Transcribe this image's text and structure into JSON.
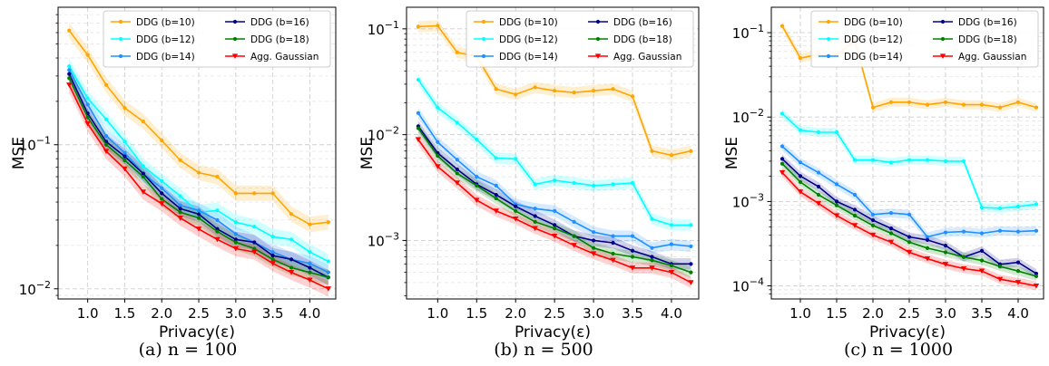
{
  "chart_data": [
    {
      "type": "line",
      "caption": "(a) n = 100",
      "xlabel": "Privacy(ε)",
      "ylabel": "MSE",
      "yscale": "log",
      "xlim": [
        0.6,
        4.35
      ],
      "ylim": [
        0.0085,
        0.9
      ],
      "xticks": [
        "1.0",
        "1.5",
        "2.0",
        "2.5",
        "3.0",
        "3.5",
        "4.0"
      ],
      "yticks": [
        {
          "value": 0.01,
          "label": "10^-2"
        },
        {
          "value": 0.1,
          "label": "10^-1"
        }
      ],
      "grid": true,
      "legend_position": "top-right",
      "x": [
        0.75,
        1.0,
        1.25,
        1.5,
        1.75,
        2.0,
        2.25,
        2.5,
        2.75,
        3.0,
        3.25,
        3.5,
        3.75,
        4.0,
        4.25
      ],
      "series": [
        {
          "name": "DDG (b=10)",
          "color": "#FFA500",
          "marker": "circle",
          "values": [
            0.62,
            0.42,
            0.26,
            0.18,
            0.145,
            0.107,
            0.078,
            0.064,
            0.06,
            0.046,
            0.046,
            0.046,
            0.033,
            0.028,
            0.029
          ]
        },
        {
          "name": "DDG (b=12)",
          "color": "#00FFFF",
          "marker": "circle",
          "values": [
            0.35,
            0.21,
            0.15,
            0.105,
            0.071,
            0.056,
            0.044,
            0.034,
            0.035,
            0.029,
            0.027,
            0.023,
            0.022,
            0.018,
            0.0155
          ]
        },
        {
          "name": "DDG (b=14)",
          "color": "#1E90FF",
          "marker": "circle",
          "values": [
            0.33,
            0.19,
            0.115,
            0.088,
            0.063,
            0.05,
            0.038,
            0.035,
            0.03,
            0.024,
            0.021,
            0.018,
            0.016,
            0.015,
            0.013
          ]
        },
        {
          "name": "DDG (b=16)",
          "color": "#00008B",
          "marker": "circle",
          "values": [
            0.31,
            0.165,
            0.105,
            0.083,
            0.063,
            0.046,
            0.036,
            0.033,
            0.026,
            0.022,
            0.021,
            0.017,
            0.016,
            0.014,
            0.012
          ]
        },
        {
          "name": "DDG (b=18)",
          "color": "#008000",
          "marker": "circle",
          "values": [
            0.29,
            0.155,
            0.1,
            0.078,
            0.06,
            0.042,
            0.034,
            0.031,
            0.025,
            0.021,
            0.019,
            0.016,
            0.014,
            0.013,
            0.012
          ]
        },
        {
          "name": "Agg. Gaussian",
          "color": "#FF0000",
          "marker": "triangle-down",
          "values": [
            0.26,
            0.14,
            0.09,
            0.068,
            0.047,
            0.039,
            0.031,
            0.026,
            0.022,
            0.019,
            0.018,
            0.015,
            0.013,
            0.0115,
            0.01
          ]
        }
      ]
    },
    {
      "type": "line",
      "caption": "(b) n = 500",
      "xlabel": "Privacy(ε)",
      "ylabel": "MSE",
      "yscale": "log",
      "xlim": [
        0.6,
        4.35
      ],
      "ylim": [
        0.00028,
        0.16
      ],
      "xticks": [
        "1.0",
        "1.5",
        "2.0",
        "2.5",
        "3.0",
        "3.5",
        "4.0"
      ],
      "yticks": [
        {
          "value": 0.001,
          "label": "10^-3"
        },
        {
          "value": 0.01,
          "label": "10^-2"
        },
        {
          "value": 0.1,
          "label": "10^-1"
        }
      ],
      "grid": true,
      "legend_position": "top-right",
      "x": [
        0.75,
        1.0,
        1.25,
        1.5,
        1.75,
        2.0,
        2.25,
        2.5,
        2.75,
        3.0,
        3.25,
        3.5,
        3.75,
        4.0,
        4.25
      ],
      "series": [
        {
          "name": "DDG (b=10)",
          "color": "#FFA500",
          "marker": "circle",
          "values": [
            0.105,
            0.107,
            0.06,
            0.055,
            0.027,
            0.024,
            0.028,
            0.026,
            0.025,
            0.026,
            0.027,
            0.023,
            0.007,
            0.0064,
            0.007
          ]
        },
        {
          "name": "DDG (b=12)",
          "color": "#00FFFF",
          "marker": "circle",
          "values": [
            0.033,
            0.018,
            0.013,
            0.009,
            0.006,
            0.0059,
            0.0034,
            0.0037,
            0.0035,
            0.0033,
            0.0034,
            0.0035,
            0.0016,
            0.0014,
            0.0014
          ]
        },
        {
          "name": "DDG (b=14)",
          "color": "#1E90FF",
          "marker": "circle",
          "values": [
            0.016,
            0.0085,
            0.0058,
            0.004,
            0.0033,
            0.0022,
            0.002,
            0.0019,
            0.0015,
            0.0012,
            0.0011,
            0.0011,
            0.00085,
            0.00092,
            0.00088
          ]
        },
        {
          "name": "DDG (b=16)",
          "color": "#00008B",
          "marker": "circle",
          "values": [
            0.012,
            0.0067,
            0.0047,
            0.0034,
            0.0027,
            0.0021,
            0.0017,
            0.0014,
            0.0011,
            0.001,
            0.00095,
            0.0008,
            0.0007,
            0.0006,
            0.0006
          ]
        },
        {
          "name": "DDG (b=18)",
          "color": "#008000",
          "marker": "circle",
          "values": [
            0.0115,
            0.0063,
            0.0043,
            0.0033,
            0.0025,
            0.0019,
            0.0015,
            0.0013,
            0.0011,
            0.00085,
            0.00075,
            0.0007,
            0.00065,
            0.00058,
            0.0005
          ]
        },
        {
          "name": "Agg. Gaussian",
          "color": "#FF0000",
          "marker": "triangle-down",
          "values": [
            0.009,
            0.005,
            0.0035,
            0.0024,
            0.0019,
            0.0016,
            0.0013,
            0.0011,
            0.0009,
            0.00075,
            0.00065,
            0.00055,
            0.00055,
            0.0005,
            0.0004
          ]
        }
      ]
    },
    {
      "type": "line",
      "caption": "(c) n = 1000",
      "xlabel": "Privacy(ε)",
      "ylabel": "MSE",
      "yscale": "log",
      "xlim": [
        0.6,
        4.35
      ],
      "ylim": [
        7e-05,
        0.2
      ],
      "xticks": [
        "1.0",
        "1.5",
        "2.0",
        "2.5",
        "3.0",
        "3.5",
        "4.0"
      ],
      "yticks": [
        {
          "value": 0.0001,
          "label": "10^-4"
        },
        {
          "value": 0.001,
          "label": "10^-3"
        },
        {
          "value": 0.01,
          "label": "10^-2"
        },
        {
          "value": 0.1,
          "label": "10^-1"
        }
      ],
      "grid": true,
      "legend_position": "top-right",
      "x": [
        0.75,
        1.0,
        1.25,
        1.5,
        1.75,
        2.0,
        2.25,
        2.5,
        2.75,
        3.0,
        3.25,
        3.5,
        3.75,
        4.0,
        4.25
      ],
      "series": [
        {
          "name": "DDG (b=10)",
          "color": "#FFA500",
          "marker": "circle",
          "values": [
            0.12,
            0.05,
            0.055,
            0.055,
            0.08,
            0.013,
            0.015,
            0.015,
            0.014,
            0.015,
            0.014,
            0.014,
            0.013,
            0.015,
            0.013
          ]
        },
        {
          "name": "DDG (b=12)",
          "color": "#00FFFF",
          "marker": "circle",
          "values": [
            0.011,
            0.007,
            0.0066,
            0.0066,
            0.0031,
            0.0031,
            0.0029,
            0.0031,
            0.0031,
            0.003,
            0.003,
            0.00085,
            0.00083,
            0.00087,
            0.00093
          ]
        },
        {
          "name": "DDG (b=14)",
          "color": "#1E90FF",
          "marker": "circle",
          "values": [
            0.0045,
            0.0029,
            0.0022,
            0.0016,
            0.0012,
            0.0007,
            0.00073,
            0.0007,
            0.00038,
            0.00043,
            0.00044,
            0.00042,
            0.00045,
            0.00044,
            0.00045
          ]
        },
        {
          "name": "DDG (b=16)",
          "color": "#00008B",
          "marker": "circle",
          "values": [
            0.0032,
            0.002,
            0.0015,
            0.001,
            0.0008,
            0.0006,
            0.00048,
            0.00038,
            0.00035,
            0.0003,
            0.00022,
            0.00026,
            0.00018,
            0.00019,
            0.00014
          ]
        },
        {
          "name": "DDG (b=18)",
          "color": "#008000",
          "marker": "circle",
          "values": [
            0.0028,
            0.0017,
            0.0012,
            0.0009,
            0.00068,
            0.00052,
            0.00042,
            0.00033,
            0.00028,
            0.00025,
            0.00022,
            0.0002,
            0.00017,
            0.00015,
            0.00013
          ]
        },
        {
          "name": "Agg. Gaussian",
          "color": "#FF0000",
          "marker": "triangle-down",
          "values": [
            0.0022,
            0.0013,
            0.00095,
            0.00068,
            0.00052,
            0.0004,
            0.00033,
            0.00025,
            0.00021,
            0.00018,
            0.00016,
            0.00015,
            0.00012,
            0.00011,
            0.0001
          ]
        }
      ]
    }
  ]
}
